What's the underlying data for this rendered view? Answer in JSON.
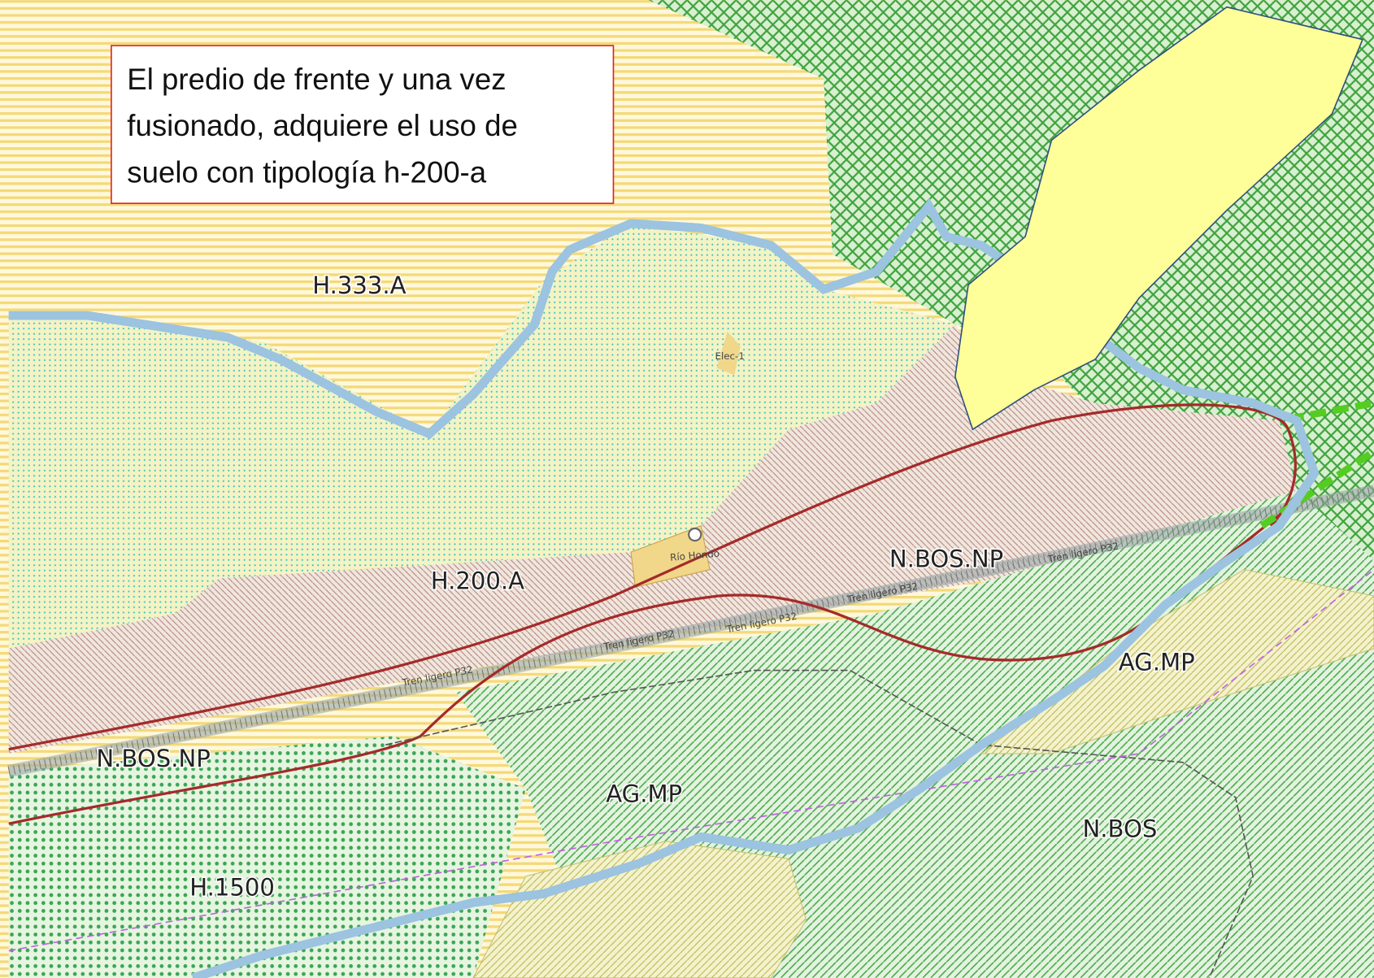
{
  "annotation": {
    "lines": [
      "El predio de frente y una vez",
      "fusionado, adquiere el uso de",
      "suelo con tipología h-200-a"
    ]
  },
  "zones": [
    {
      "label": "H.333.A"
    },
    {
      "label": "H.200.A"
    },
    {
      "label": "N.BOS.NP"
    },
    {
      "label": "N.BOS.NP"
    },
    {
      "label": "AG.MP"
    },
    {
      "label": "AG.MP"
    },
    {
      "label": "N.BOS"
    },
    {
      "label": "H.1500"
    }
  ],
  "features": {
    "rail": "Tren ligero P32",
    "river": "Río Hondo",
    "station": "Elec-1"
  }
}
